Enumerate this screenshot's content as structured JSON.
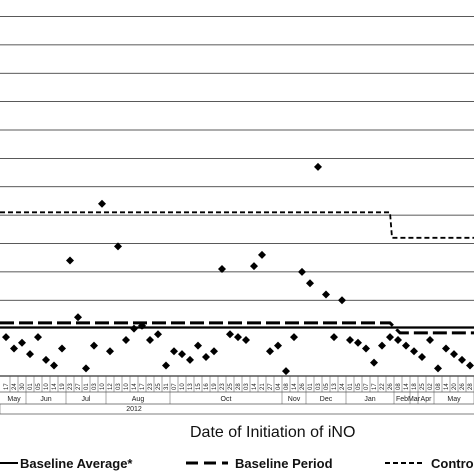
{
  "chart_data": {
    "type": "scatter",
    "title": "",
    "xlabel": "Date of Initiation of iNO",
    "ylabel": "",
    "grid": "horizontal",
    "x_day_labels": [
      "17",
      "24",
      "30",
      "01",
      "05",
      "10",
      "14",
      "19",
      "23",
      "27",
      "01",
      "03",
      "10",
      "12",
      "03",
      "10",
      "14",
      "17",
      "23",
      "25",
      "31",
      "07",
      "10",
      "13",
      "15",
      "16",
      "19",
      "23",
      "25",
      "28",
      "03",
      "14",
      "21",
      "27",
      "04",
      "08",
      "14",
      "26",
      "01",
      "03",
      "05",
      "13",
      "24",
      "01",
      "05",
      "07",
      "17",
      "22",
      "26",
      "08",
      "14",
      "18",
      "25",
      "02",
      "08",
      "14",
      "20",
      "26",
      "28"
    ],
    "month_labels": [
      "May",
      "Jun",
      "Jul",
      "Aug",
      "Oct",
      "Nov",
      "Dec",
      "Jan",
      "Feb",
      "Mar",
      "Apr",
      "May"
    ],
    "year_labels": [
      "2012"
    ],
    "points": [
      0.9,
      0.5,
      0.7,
      0.3,
      0.9,
      0.1,
      -0.1,
      0.5,
      3.6,
      1.6,
      -0.2,
      0.6,
      5.6,
      0.4,
      4.1,
      0.8,
      1.2,
      1.3,
      0.8,
      1.0,
      -0.1,
      0.4,
      0.3,
      0.1,
      0.6,
      0.2,
      0.4,
      3.3,
      1.0,
      0.9,
      0.8,
      3.4,
      3.8,
      0.4,
      0.6,
      -0.3,
      0.9,
      3.2,
      2.8,
      6.9,
      2.4,
      0.9,
      2.2,
      0.8,
      0.7,
      0.5,
      0.0,
      0.6,
      0.9,
      0.8,
      0.6,
      0.4,
      0.2,
      0.8,
      -0.2,
      0.5,
      0.3,
      0.1,
      -0.1
    ],
    "series": [
      {
        "name": "Baseline Average*",
        "style": "solid",
        "segments": [
          {
            "from": 0,
            "to": 55,
            "y": 1.25
          },
          {
            "from": 55,
            "to": 58,
            "y": 1.25
          }
        ]
      },
      {
        "name": "Baseline Period",
        "style": "long-dash",
        "segments": [
          {
            "from": 0,
            "to": 48,
            "y": 1.4
          },
          {
            "from": 50,
            "to": 58,
            "y": 1.05
          }
        ]
      },
      {
        "name": "Control",
        "style": "short-dash",
        "segments": [
          {
            "from": 0,
            "to": 48,
            "y": 5.3
          },
          {
            "from": 49,
            "to": 58,
            "y": 4.4
          }
        ]
      }
    ],
    "ylim": [
      -0.4,
      12.5
    ],
    "gridlines": [
      1.2,
      2.2,
      3.2,
      4.2,
      5.2,
      6.2,
      7.2,
      8.2,
      9.2,
      10.2,
      11.2,
      12.2
    ],
    "legend_position": "bottom"
  },
  "legend": {
    "baseline_average": "Baseline Average*",
    "baseline_period": "Baseline Period",
    "control": "Contro"
  }
}
